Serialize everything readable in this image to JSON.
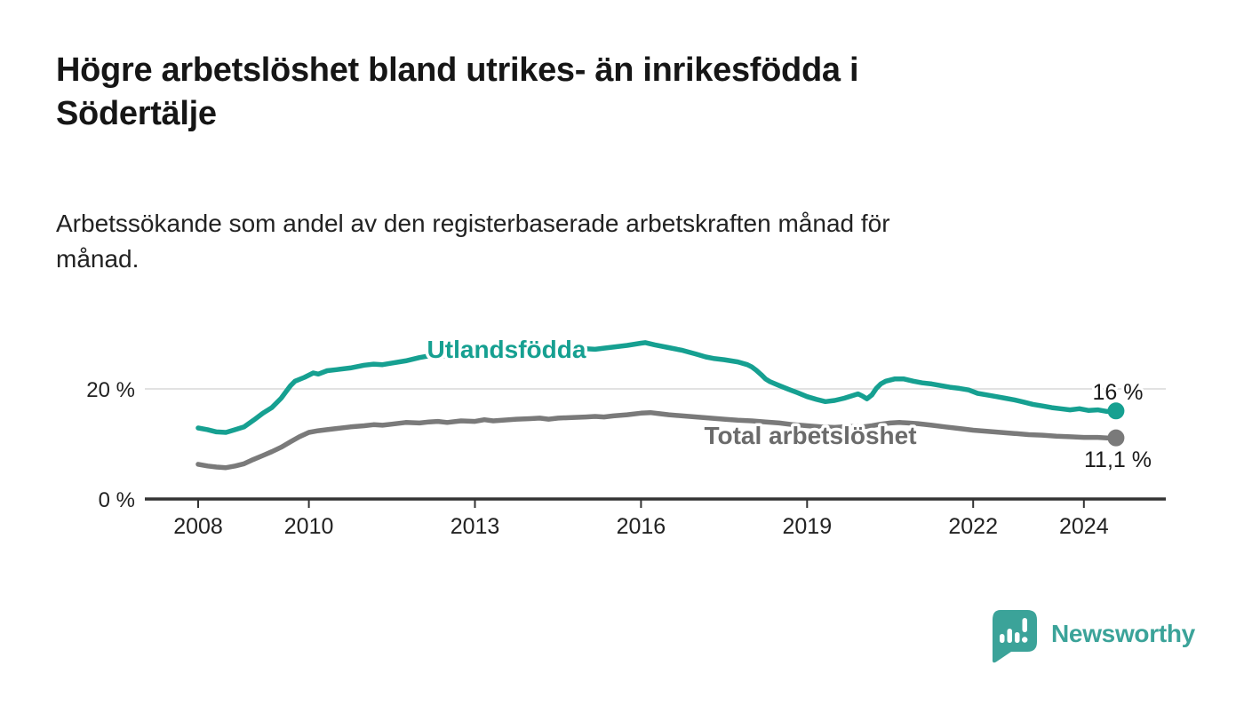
{
  "header": {
    "title": "Högre arbetslöshet bland utrikes- än inrikesfödda i\nSödertälje",
    "subtitle": "Arbetssökande som andel av den registerbaserade arbetskraften månad för\nmånad."
  },
  "chart_data": {
    "type": "line",
    "unit": "%",
    "title": "",
    "xlabel": "",
    "ylabel": "",
    "xlim": [
      2007.0,
      2025.5
    ],
    "ylim": [
      0,
      30
    ],
    "grid": "single horizontal gridline at 20 %, baseline axis at 0 %",
    "legend_position": "inline labels on lines",
    "x_ticks": [
      {
        "t": 2008,
        "label": "2008"
      },
      {
        "t": 2010,
        "label": "2010"
      },
      {
        "t": 2013,
        "label": "2013"
      },
      {
        "t": 2016,
        "label": "2016"
      },
      {
        "t": 2019,
        "label": "2019"
      },
      {
        "t": 2022,
        "label": "2022"
      },
      {
        "t": 2024,
        "label": "2024"
      }
    ],
    "y_ticks": [
      {
        "value": 0,
        "label": "0 %"
      },
      {
        "value": 20,
        "label": "20 %"
      }
    ],
    "gridline_values": [
      20
    ],
    "colors": {
      "gridline": "#d8d8d8",
      "axis": "#333333",
      "tick_label": "#222222",
      "end_label": "#1a1a1a"
    },
    "series": [
      {
        "name": "Utlandsfödda",
        "color": "#16a091",
        "label_color": "#16a091",
        "end_label": "16 %",
        "end_value": 16.0,
        "points": [
          [
            2008.0,
            12.9
          ],
          [
            2008.17,
            12.6
          ],
          [
            2008.33,
            12.2
          ],
          [
            2008.5,
            12.1
          ],
          [
            2008.67,
            12.6
          ],
          [
            2008.83,
            13.1
          ],
          [
            2009.0,
            14.3
          ],
          [
            2009.17,
            15.6
          ],
          [
            2009.33,
            16.6
          ],
          [
            2009.5,
            18.3
          ],
          [
            2009.58,
            19.4
          ],
          [
            2009.67,
            20.6
          ],
          [
            2009.75,
            21.4
          ],
          [
            2009.92,
            22.1
          ],
          [
            2010.08,
            22.9
          ],
          [
            2010.17,
            22.7
          ],
          [
            2010.33,
            23.3
          ],
          [
            2010.5,
            23.5
          ],
          [
            2010.75,
            23.8
          ],
          [
            2011.0,
            24.3
          ],
          [
            2011.17,
            24.5
          ],
          [
            2011.33,
            24.4
          ],
          [
            2011.5,
            24.7
          ],
          [
            2011.75,
            25.1
          ],
          [
            2012.0,
            25.7
          ],
          [
            2012.17,
            26.0
          ],
          [
            2012.33,
            26.2
          ],
          [
            2012.5,
            25.9
          ],
          [
            2012.75,
            26.2
          ],
          [
            2013.0,
            26.2
          ],
          [
            2013.17,
            26.5
          ],
          [
            2013.33,
            26.3
          ],
          [
            2013.5,
            26.6
          ],
          [
            2013.75,
            26.7
          ],
          [
            2014.0,
            26.7
          ],
          [
            2014.17,
            26.9
          ],
          [
            2014.33,
            27.0
          ],
          [
            2014.5,
            26.9
          ],
          [
            2014.67,
            27.2
          ],
          [
            2014.83,
            27.1
          ],
          [
            2015.0,
            27.3
          ],
          [
            2015.17,
            27.2
          ],
          [
            2015.33,
            27.4
          ],
          [
            2015.5,
            27.6
          ],
          [
            2015.75,
            27.9
          ],
          [
            2016.0,
            28.3
          ],
          [
            2016.08,
            28.4
          ],
          [
            2016.25,
            28.0
          ],
          [
            2016.5,
            27.5
          ],
          [
            2016.75,
            27.0
          ],
          [
            2017.0,
            26.3
          ],
          [
            2017.17,
            25.8
          ],
          [
            2017.33,
            25.5
          ],
          [
            2017.5,
            25.3
          ],
          [
            2017.75,
            24.9
          ],
          [
            2017.92,
            24.4
          ],
          [
            2018.0,
            24.0
          ],
          [
            2018.08,
            23.4
          ],
          [
            2018.17,
            22.6
          ],
          [
            2018.25,
            21.8
          ],
          [
            2018.33,
            21.3
          ],
          [
            2018.5,
            20.6
          ],
          [
            2018.67,
            19.9
          ],
          [
            2018.83,
            19.3
          ],
          [
            2019.0,
            18.6
          ],
          [
            2019.17,
            18.1
          ],
          [
            2019.33,
            17.7
          ],
          [
            2019.5,
            17.9
          ],
          [
            2019.67,
            18.3
          ],
          [
            2019.83,
            18.8
          ],
          [
            2019.92,
            19.1
          ],
          [
            2020.0,
            18.7
          ],
          [
            2020.08,
            18.2
          ],
          [
            2020.17,
            18.9
          ],
          [
            2020.25,
            20.1
          ],
          [
            2020.33,
            20.9
          ],
          [
            2020.42,
            21.4
          ],
          [
            2020.58,
            21.8
          ],
          [
            2020.75,
            21.8
          ],
          [
            2020.92,
            21.4
          ],
          [
            2021.08,
            21.1
          ],
          [
            2021.25,
            20.9
          ],
          [
            2021.42,
            20.6
          ],
          [
            2021.58,
            20.3
          ],
          [
            2021.75,
            20.1
          ],
          [
            2021.92,
            19.8
          ],
          [
            2022.08,
            19.2
          ],
          [
            2022.25,
            18.9
          ],
          [
            2022.42,
            18.6
          ],
          [
            2022.58,
            18.3
          ],
          [
            2022.75,
            18.0
          ],
          [
            2022.92,
            17.6
          ],
          [
            2023.08,
            17.2
          ],
          [
            2023.25,
            16.9
          ],
          [
            2023.42,
            16.6
          ],
          [
            2023.58,
            16.4
          ],
          [
            2023.75,
            16.2
          ],
          [
            2023.92,
            16.4
          ],
          [
            2024.08,
            16.1
          ],
          [
            2024.25,
            16.2
          ],
          [
            2024.42,
            15.9
          ],
          [
            2024.58,
            16.0
          ]
        ]
      },
      {
        "name": "Total arbetslöshet",
        "color": "#7a7a7a",
        "label_color": "#6b6b6b",
        "end_label": "11,1 %",
        "end_value": 11.1,
        "points": [
          [
            2008.0,
            6.3
          ],
          [
            2008.17,
            6.0
          ],
          [
            2008.33,
            5.8
          ],
          [
            2008.5,
            5.7
          ],
          [
            2008.67,
            6.0
          ],
          [
            2008.83,
            6.4
          ],
          [
            2009.0,
            7.2
          ],
          [
            2009.17,
            7.9
          ],
          [
            2009.33,
            8.6
          ],
          [
            2009.5,
            9.4
          ],
          [
            2009.67,
            10.4
          ],
          [
            2009.83,
            11.3
          ],
          [
            2010.0,
            12.1
          ],
          [
            2010.17,
            12.4
          ],
          [
            2010.33,
            12.6
          ],
          [
            2010.5,
            12.8
          ],
          [
            2010.75,
            13.1
          ],
          [
            2011.0,
            13.3
          ],
          [
            2011.17,
            13.5
          ],
          [
            2011.33,
            13.4
          ],
          [
            2011.5,
            13.6
          ],
          [
            2011.75,
            13.9
          ],
          [
            2012.0,
            13.8
          ],
          [
            2012.17,
            14.0
          ],
          [
            2012.33,
            14.1
          ],
          [
            2012.5,
            13.9
          ],
          [
            2012.75,
            14.2
          ],
          [
            2013.0,
            14.1
          ],
          [
            2013.17,
            14.4
          ],
          [
            2013.33,
            14.2
          ],
          [
            2013.5,
            14.3
          ],
          [
            2013.75,
            14.5
          ],
          [
            2014.0,
            14.6
          ],
          [
            2014.17,
            14.7
          ],
          [
            2014.33,
            14.5
          ],
          [
            2014.5,
            14.7
          ],
          [
            2014.75,
            14.8
          ],
          [
            2015.0,
            14.9
          ],
          [
            2015.17,
            15.0
          ],
          [
            2015.33,
            14.9
          ],
          [
            2015.5,
            15.1
          ],
          [
            2015.75,
            15.3
          ],
          [
            2016.0,
            15.6
          ],
          [
            2016.17,
            15.7
          ],
          [
            2016.33,
            15.5
          ],
          [
            2016.5,
            15.3
          ],
          [
            2016.75,
            15.1
          ],
          [
            2017.0,
            14.9
          ],
          [
            2017.25,
            14.7
          ],
          [
            2017.5,
            14.5
          ],
          [
            2017.75,
            14.3
          ],
          [
            2018.0,
            14.2
          ],
          [
            2018.25,
            14.0
          ],
          [
            2018.5,
            13.8
          ],
          [
            2018.75,
            13.5
          ],
          [
            2019.0,
            13.3
          ],
          [
            2019.25,
            13.1
          ],
          [
            2019.5,
            13.0
          ],
          [
            2019.75,
            13.2
          ],
          [
            2020.0,
            13.1
          ],
          [
            2020.17,
            13.3
          ],
          [
            2020.33,
            13.6
          ],
          [
            2020.5,
            13.8
          ],
          [
            2020.67,
            13.9
          ],
          [
            2020.83,
            13.8
          ],
          [
            2021.0,
            13.7
          ],
          [
            2021.25,
            13.4
          ],
          [
            2021.5,
            13.1
          ],
          [
            2021.75,
            12.8
          ],
          [
            2022.0,
            12.5
          ],
          [
            2022.25,
            12.3
          ],
          [
            2022.5,
            12.1
          ],
          [
            2022.75,
            11.9
          ],
          [
            2023.0,
            11.7
          ],
          [
            2023.25,
            11.6
          ],
          [
            2023.5,
            11.4
          ],
          [
            2023.75,
            11.3
          ],
          [
            2024.0,
            11.2
          ],
          [
            2024.25,
            11.2
          ],
          [
            2024.42,
            11.1
          ],
          [
            2024.58,
            11.1
          ]
        ]
      }
    ]
  },
  "footer": {
    "brand": "Newsworthy",
    "brand_color": "#3ba399",
    "logo_icon": "speech-bubble-bar-chart-icon"
  }
}
